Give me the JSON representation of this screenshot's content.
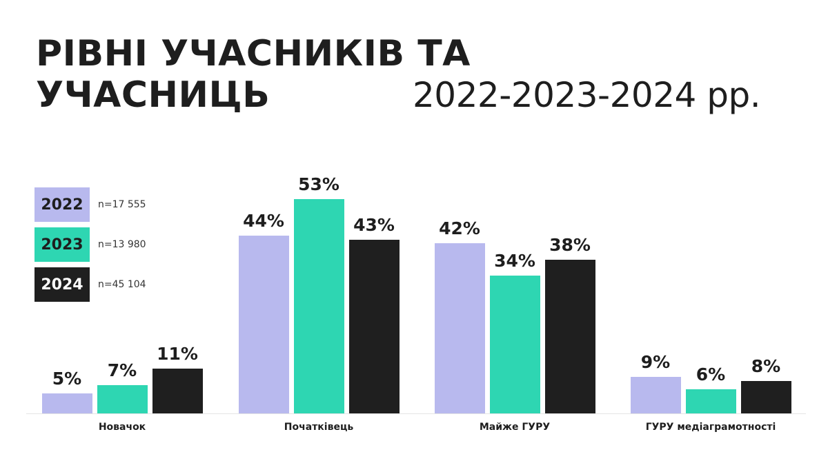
{
  "title": {
    "line1": "РІВНІ УЧАСНИКІВ ТА",
    "line2": "УЧАСНИЦЬ",
    "years": "2022-2023-2024 рр."
  },
  "legend": [
    {
      "label": "2022",
      "n": "n=17 555",
      "color": "#b8b9ee",
      "text_color": "#1e1e1e"
    },
    {
      "label": "2023",
      "n": "n=13 980",
      "color": "#2ed6b2",
      "text_color": "#1e1e1e"
    },
    {
      "label": "2024",
      "n": "n=45 104",
      "color": "#1f1f1f",
      "text_color": "#ffffff"
    }
  ],
  "chart_data": {
    "type": "bar",
    "title": "РІВНІ УЧАСНИКІВ ТА УЧАСНИЦЬ 2022-2023-2024 рр.",
    "xlabel": "",
    "ylabel": "",
    "categories": [
      "Новачок",
      "Початківець",
      "Майже ГУРУ",
      "ГУРУ медіаграмотності"
    ],
    "series": [
      {
        "name": "2022",
        "n": "n=17 555",
        "color": "#b8b9ee",
        "values": [
          5,
          44,
          42,
          9
        ],
        "labels": [
          "5%",
          "44%",
          "42%",
          "9%"
        ]
      },
      {
        "name": "2023",
        "n": "n=13 980",
        "color": "#2ed6b2",
        "values": [
          7,
          53,
          34,
          6
        ],
        "labels": [
          "7%",
          "53%",
          "34%",
          "6%"
        ]
      },
      {
        "name": "2024",
        "n": "n=45 104",
        "color": "#1f1f1f",
        "values": [
          11,
          43,
          38,
          8
        ],
        "labels": [
          "11%",
          "43%",
          "38%",
          "8%"
        ]
      }
    ],
    "unit": "%",
    "grid": false,
    "legend_position": "top-left",
    "ylim": [
      0,
      55
    ]
  }
}
